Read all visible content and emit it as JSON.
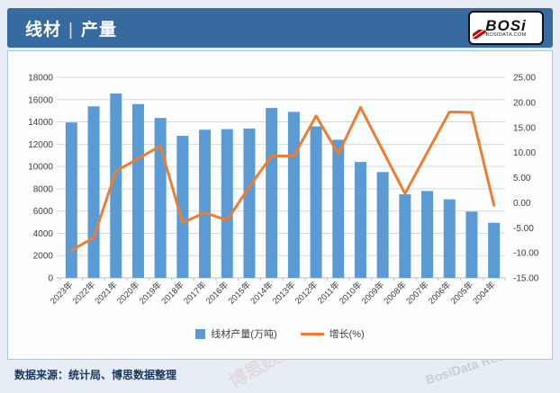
{
  "header": {
    "title_left": "线材",
    "title_sep": "|",
    "title_right": "产量",
    "logo_text": "BOSi",
    "logo_sub": "BOSIDATA.COM"
  },
  "legend": [
    {
      "label": "线材产量(万吨)",
      "type": "bar",
      "color": "#5b9bd5"
    },
    {
      "label": "增长(%)",
      "type": "line",
      "color": "#ed7d31"
    }
  ],
  "footer": {
    "source": "数据来源：统计局、博思数据整理"
  },
  "watermarks": [
    {
      "text": "博思数据",
      "color": "#c00000"
    },
    {
      "text": "BosiData Research",
      "color": "#7d8da0"
    },
    {
      "text": "BOSi",
      "color": "#c00000"
    }
  ],
  "chart_data": {
    "type": "bar+line combo",
    "categories": [
      "2023年",
      "2022年",
      "2021年",
      "2020年",
      "2019年",
      "2018年",
      "2017年",
      "2016年",
      "2015年",
      "2014年",
      "2013年",
      "2012年",
      "2011年",
      "2010年",
      "2009年",
      "2008年",
      "2007年",
      "2006年",
      "2005年",
      "2004年"
    ],
    "series": [
      {
        "name": "线材产量(万吨)",
        "type": "bar",
        "axis": "left",
        "color": "#5b9bd5",
        "values": [
          13950,
          15400,
          16550,
          15600,
          14350,
          12750,
          13300,
          13350,
          13400,
          15250,
          14900,
          13600,
          12400,
          10400,
          9500,
          7500,
          7800,
          7050,
          5950,
          4950
        ]
      },
      {
        "name": "增长(%)",
        "type": "line",
        "axis": "right",
        "color": "#ed7d31",
        "values": [
          -9.5,
          -7.0,
          6.3,
          8.8,
          11.3,
          -4.0,
          -2.0,
          -3.5,
          3.2,
          9.3,
          9.3,
          17.3,
          9.7,
          19.0,
          10.4,
          1.8,
          10.0,
          18.1,
          18.0,
          -0.5
        ]
      }
    ],
    "left_axis": {
      "min": 0,
      "max": 18000,
      "step": 2000,
      "tick_labels": [
        "0",
        "2000",
        "4000",
        "6000",
        "8000",
        "10000",
        "12000",
        "14000",
        "16000",
        "18000"
      ]
    },
    "right_axis": {
      "min": -15,
      "max": 25,
      "step": 5,
      "tick_labels": [
        "-15.00",
        "-10.00",
        "-5.00",
        "0.00",
        "5.00",
        "10.00",
        "15.00",
        "20.00",
        "25.00"
      ]
    },
    "grid": true,
    "legend_position": "bottom",
    "x_label_rotation": -45
  }
}
